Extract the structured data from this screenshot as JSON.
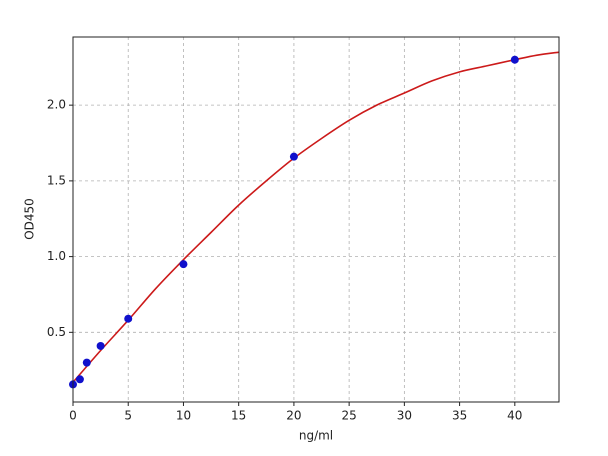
{
  "chart_data": {
    "type": "scatter",
    "xlabel": "ng/ml",
    "ylabel": "OD450",
    "xlim": [
      0,
      44
    ],
    "ylim": [
      0.04,
      2.45
    ],
    "xticks": [
      0,
      5,
      10,
      15,
      20,
      25,
      30,
      35,
      40
    ],
    "yticks": [
      0.5,
      {
        "value": 1,
        "label": "1.0"
      },
      1.5,
      {
        "value": 2,
        "label": "2.0"
      }
    ],
    "grid": true,
    "series": [
      {
        "style": "markers",
        "color": "#1010cc",
        "x": [
          0,
          0.625,
          1.25,
          2.5,
          5,
          10,
          20,
          40
        ],
        "values": [
          0.156,
          0.19,
          0.3,
          0.41,
          0.59,
          0.95,
          1.66,
          2.3
        ]
      },
      {
        "style": "line",
        "color": "#cc1a1a",
        "x": [
          0,
          2.5,
          5,
          7.5,
          10,
          12.5,
          15,
          17.5,
          20,
          22.5,
          25,
          27.5,
          30,
          32.5,
          35,
          37.5,
          40,
          42,
          44
        ],
        "values": [
          0.17,
          0.38,
          0.58,
          0.79,
          0.98,
          1.16,
          1.34,
          1.5,
          1.65,
          1.78,
          1.9,
          2.0,
          2.08,
          2.16,
          2.22,
          2.26,
          2.3,
          2.33,
          2.35
        ]
      }
    ]
  }
}
